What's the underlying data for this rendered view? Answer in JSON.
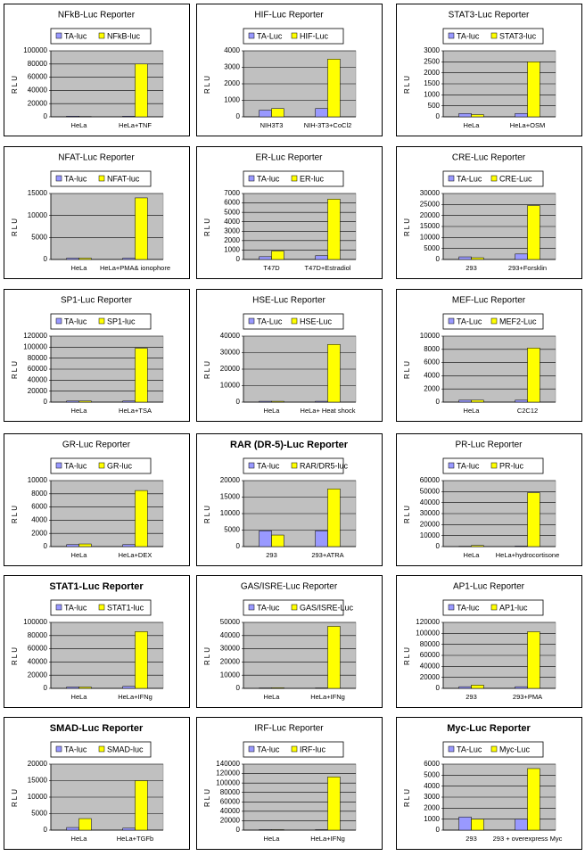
{
  "chart_data": [
    {
      "type": "bar",
      "title": "NFkB-Luc Reporter",
      "y_label": "RLU",
      "categories": [
        "HeLa",
        "HeLa+TNF"
      ],
      "series": [
        {
          "name": "TA-luc",
          "color": "#9999ff",
          "values": [
            1000,
            1000
          ]
        },
        {
          "name": "NFkB-luc",
          "color": "#ffff00",
          "values": [
            500,
            80000
          ]
        }
      ],
      "ylim": [
        0,
        100000
      ],
      "yticks": [
        0,
        20000,
        40000,
        60000,
        80000,
        100000
      ]
    },
    {
      "type": "bar",
      "title": "HIF-Luc Reporter",
      "y_label": "RLU",
      "categories": [
        "NIH3T3",
        "NIH-3T3+CoCl2"
      ],
      "series": [
        {
          "name": "TA-Luc",
          "color": "#9999ff",
          "values": [
            400,
            500
          ]
        },
        {
          "name": "HIF-Luc",
          "color": "#ffff00",
          "values": [
            500,
            3500
          ]
        }
      ],
      "ylim": [
        0,
        4000
      ],
      "yticks": [
        0,
        1000,
        2000,
        3000,
        4000
      ]
    },
    {
      "type": "bar",
      "title": "STAT3-Luc Reporter",
      "y_label": "RLU",
      "categories": [
        "HeLa",
        "HeLa+OSM"
      ],
      "series": [
        {
          "name": "TA-luc",
          "color": "#9999ff",
          "values": [
            150,
            150
          ]
        },
        {
          "name": "STAT3-luc",
          "color": "#ffff00",
          "values": [
            100,
            2500
          ]
        }
      ],
      "ylim": [
        0,
        3000
      ],
      "yticks": [
        0,
        500,
        1000,
        1500,
        2000,
        2500,
        3000
      ]
    },
    {
      "type": "bar",
      "title": "NFAT-Luc Reporter",
      "y_label": "RLU",
      "categories": [
        "HeLa",
        "HeLa+PMA& ionophore"
      ],
      "series": [
        {
          "name": "TA-luc",
          "color": "#9999ff",
          "values": [
            300,
            300
          ]
        },
        {
          "name": "NFAT-luc",
          "color": "#ffff00",
          "values": [
            300,
            14000
          ]
        }
      ],
      "ylim": [
        0,
        15000
      ],
      "yticks": [
        0,
        5000,
        10000,
        15000
      ]
    },
    {
      "type": "bar",
      "title": "ER-Luc Reporter",
      "y_label": "RLU",
      "categories": [
        "T47D",
        "T47D+Estradiol"
      ],
      "series": [
        {
          "name": "TA-luc",
          "color": "#9999ff",
          "values": [
            300,
            400
          ]
        },
        {
          "name": "ER-luc",
          "color": "#ffff00",
          "values": [
            900,
            6400
          ]
        }
      ],
      "ylim": [
        0,
        7000
      ],
      "yticks": [
        0,
        1000,
        2000,
        3000,
        4000,
        5000,
        6000,
        7000
      ]
    },
    {
      "type": "bar",
      "title": "CRE-Luc Reporter",
      "y_label": "RLU",
      "categories": [
        "293",
        "293+Forsklin"
      ],
      "series": [
        {
          "name": "TA-Luc",
          "color": "#9999ff",
          "values": [
            1200,
            2500
          ]
        },
        {
          "name": "CRE-Luc",
          "color": "#ffff00",
          "values": [
            800,
            24500
          ]
        }
      ],
      "ylim": [
        0,
        30000
      ],
      "yticks": [
        0,
        5000,
        10000,
        15000,
        20000,
        25000,
        30000
      ]
    },
    {
      "type": "bar",
      "title": "SP1-Luc Reporter",
      "y_label": "RLU",
      "categories": [
        "HeLa",
        "HeLa+TSA"
      ],
      "series": [
        {
          "name": "TA-luc",
          "color": "#9999ff",
          "values": [
            2000,
            2000
          ]
        },
        {
          "name": "SP1-luc",
          "color": "#ffff00",
          "values": [
            2000,
            98000
          ]
        }
      ],
      "ylim": [
        0,
        120000
      ],
      "yticks": [
        0,
        20000,
        40000,
        60000,
        80000,
        100000,
        120000
      ]
    },
    {
      "type": "bar",
      "title": "HSE-Luc Reporter",
      "y_label": "RLU",
      "categories": [
        "HeLa",
        "HeLa+ Heat shock"
      ],
      "series": [
        {
          "name": "TA-Luc",
          "color": "#9999ff",
          "values": [
            500,
            500
          ]
        },
        {
          "name": "HSE-Luc",
          "color": "#ffff00",
          "values": [
            500,
            35000
          ]
        }
      ],
      "ylim": [
        0,
        40000
      ],
      "yticks": [
        0,
        10000,
        20000,
        30000,
        40000
      ]
    },
    {
      "type": "bar",
      "title": "MEF-Luc Reporter",
      "y_label": "RLU",
      "categories": [
        "HeLa",
        "C2C12"
      ],
      "series": [
        {
          "name": "TA-Luc",
          "color": "#9999ff",
          "values": [
            300,
            300
          ]
        },
        {
          "name": "MEF2-Luc",
          "color": "#ffff00",
          "values": [
            300,
            8200
          ]
        }
      ],
      "ylim": [
        0,
        10000
      ],
      "yticks": [
        0,
        2000,
        4000,
        6000,
        8000,
        10000
      ]
    },
    {
      "type": "bar",
      "title": "GR-Luc Reporter",
      "y_label": "RLU",
      "categories": [
        "HeLa",
        "HeLa+DEX"
      ],
      "series": [
        {
          "name": "TA-luc",
          "color": "#9999ff",
          "values": [
            300,
            300
          ]
        },
        {
          "name": "GR-luc",
          "color": "#ffff00",
          "values": [
            400,
            8500
          ]
        }
      ],
      "ylim": [
        0,
        10000
      ],
      "yticks": [
        0,
        2000,
        4000,
        6000,
        8000,
        10000
      ]
    },
    {
      "type": "bar",
      "title": "RAR (DR-5)-Luc Reporter",
      "title_bold": true,
      "y_label": "RLU",
      "categories": [
        "293",
        "293+ATRA"
      ],
      "series": [
        {
          "name": "TA-luc",
          "color": "#9999ff",
          "values": [
            4800,
            4800
          ]
        },
        {
          "name": "RAR/DR5-luc",
          "color": "#ffff00",
          "values": [
            3500,
            17500
          ]
        }
      ],
      "ylim": [
        0,
        20000
      ],
      "yticks": [
        0,
        5000,
        10000,
        15000,
        20000
      ]
    },
    {
      "type": "bar",
      "title": "PR-Luc Reporter",
      "y_label": "RLU",
      "categories": [
        "HeLa",
        "HeLa+hydrocortisone"
      ],
      "series": [
        {
          "name": "TA-luc",
          "color": "#9999ff",
          "values": [
            300,
            500
          ]
        },
        {
          "name": "PR-luc",
          "color": "#ffff00",
          "values": [
            1000,
            49000
          ]
        }
      ],
      "ylim": [
        0,
        60000
      ],
      "yticks": [
        0,
        10000,
        20000,
        30000,
        40000,
        50000,
        60000
      ]
    },
    {
      "type": "bar",
      "title": "STAT1-Luc Reporter",
      "title_bold": true,
      "y_label": "RLU",
      "categories": [
        "HeLa",
        "HeLa+IFNg"
      ],
      "series": [
        {
          "name": "TA-luc",
          "color": "#9999ff",
          "values": [
            2000,
            3000
          ]
        },
        {
          "name": "STAT1-luc",
          "color": "#ffff00",
          "values": [
            2000,
            86000
          ]
        }
      ],
      "ylim": [
        0,
        100000
      ],
      "yticks": [
        0,
        20000,
        40000,
        60000,
        80000,
        100000
      ]
    },
    {
      "type": "bar",
      "title": "GAS/ISRE-Luc Reporter",
      "y_label": "RLU",
      "categories": [
        "HeLa",
        "HeLa+IFNg"
      ],
      "series": [
        {
          "name": "TA-luc",
          "color": "#9999ff",
          "values": [
            300,
            300
          ]
        },
        {
          "name": "GAS/ISRE-Luc",
          "color": "#ffff00",
          "values": [
            500,
            47000
          ]
        }
      ],
      "ylim": [
        0,
        50000
      ],
      "yticks": [
        0,
        10000,
        20000,
        30000,
        40000,
        50000
      ]
    },
    {
      "type": "bar",
      "title": "AP1-Luc Reporter",
      "y_label": "RLU",
      "categories": [
        "293",
        "293+PMA"
      ],
      "series": [
        {
          "name": "TA-luc",
          "color": "#9999ff",
          "values": [
            3000,
            3000
          ]
        },
        {
          "name": "AP1-luc",
          "color": "#ffff00",
          "values": [
            6000,
            103000
          ]
        }
      ],
      "ylim": [
        0,
        120000
      ],
      "yticks": [
        0,
        20000,
        40000,
        60000,
        80000,
        100000,
        120000
      ]
    },
    {
      "type": "bar",
      "title": "SMAD-Luc Reporter",
      "title_bold": true,
      "y_label": "RLU",
      "categories": [
        "HeLa",
        "HeLa+TGFb"
      ],
      "series": [
        {
          "name": "TA-luc",
          "color": "#9999ff",
          "values": [
            800,
            600
          ]
        },
        {
          "name": "SMAD-luc",
          "color": "#ffff00",
          "values": [
            3500,
            15000
          ]
        }
      ],
      "ylim": [
        0,
        20000
      ],
      "yticks": [
        0,
        5000,
        10000,
        15000,
        20000
      ]
    },
    {
      "type": "bar",
      "title": "IRF-Luc Reporter",
      "y_label": "RLU",
      "categories": [
        "HeLa",
        "HeLa+IFNg"
      ],
      "series": [
        {
          "name": "TA-luc",
          "color": "#9999ff",
          "values": [
            1000,
            1000
          ]
        },
        {
          "name": "IRF-luc",
          "color": "#ffff00",
          "values": [
            1000,
            113000
          ]
        }
      ],
      "ylim": [
        0,
        140000
      ],
      "yticks": [
        0,
        20000,
        40000,
        60000,
        80000,
        100000,
        120000,
        140000
      ]
    },
    {
      "type": "bar",
      "title": "Myc-Luc Reporter",
      "title_bold": true,
      "y_label": "RLU",
      "categories": [
        "293",
        "293 + overexpress Myc"
      ],
      "series": [
        {
          "name": "TA-Luc",
          "color": "#9999ff",
          "values": [
            1200,
            1000
          ]
        },
        {
          "name": "Myc-Luc",
          "color": "#ffff00",
          "values": [
            1000,
            5600
          ]
        }
      ],
      "ylim": [
        0,
        6000
      ],
      "yticks": [
        0,
        1000,
        2000,
        3000,
        4000,
        5000,
        6000
      ]
    }
  ]
}
